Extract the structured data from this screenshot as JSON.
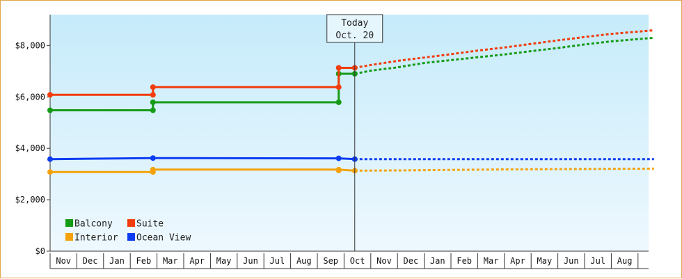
{
  "chart_data": {
    "type": "line",
    "x_categories": [
      "Nov",
      "Dec",
      "Jan",
      "Feb",
      "Mar",
      "Apr",
      "May",
      "Jun",
      "Jul",
      "Aug",
      "Sep",
      "Oct",
      "Nov",
      "Dec",
      "Jan",
      "Feb",
      "Mar",
      "Apr",
      "May",
      "Jun",
      "Jul",
      "Aug"
    ],
    "y_ticks": [
      "$0",
      "$2,000",
      "$4,000",
      "$6,000",
      "$8,000"
    ],
    "ylim": [
      0,
      9200
    ],
    "grid": false,
    "legend_position": "bottom-left",
    "today_marker": {
      "line1": "Today",
      "line2": "Oct. 20",
      "x": 11.4
    },
    "series": [
      {
        "name": "Balcony",
        "color": "#169b16",
        "history": [
          [
            0,
            5480
          ],
          [
            3.85,
            5480
          ],
          [
            3.85,
            5790
          ],
          [
            10.8,
            5790
          ],
          [
            10.8,
            6900
          ],
          [
            11.4,
            6900
          ]
        ],
        "points": [
          [
            0,
            5480
          ],
          [
            3.85,
            5480
          ],
          [
            3.85,
            5790
          ],
          [
            10.8,
            5790
          ],
          [
            10.8,
            6900
          ],
          [
            11.4,
            6900
          ]
        ],
        "forecast": [
          [
            11.4,
            6900
          ],
          [
            12,
            7020
          ],
          [
            13,
            7150
          ],
          [
            14,
            7320
          ],
          [
            15,
            7430
          ],
          [
            16,
            7540
          ],
          [
            17,
            7650
          ],
          [
            18,
            7780
          ],
          [
            19,
            7900
          ],
          [
            20,
            8040
          ],
          [
            21,
            8160
          ],
          [
            22.6,
            8300
          ]
        ]
      },
      {
        "name": "Suite",
        "color": "#f23c0c",
        "history": [
          [
            0,
            6080
          ],
          [
            3.85,
            6080
          ],
          [
            3.85,
            6380
          ],
          [
            10.8,
            6380
          ],
          [
            10.8,
            7130
          ],
          [
            11.4,
            7130
          ]
        ],
        "points": [
          [
            0,
            6080
          ],
          [
            3.85,
            6080
          ],
          [
            3.85,
            6380
          ],
          [
            10.8,
            6380
          ],
          [
            10.8,
            7130
          ],
          [
            11.4,
            7130
          ]
        ],
        "forecast": [
          [
            11.4,
            7130
          ],
          [
            12,
            7240
          ],
          [
            13,
            7400
          ],
          [
            14,
            7530
          ],
          [
            15,
            7660
          ],
          [
            16,
            7800
          ],
          [
            17,
            7920
          ],
          [
            18,
            8060
          ],
          [
            19,
            8200
          ],
          [
            20,
            8330
          ],
          [
            21,
            8450
          ],
          [
            22.6,
            8590
          ]
        ]
      },
      {
        "name": "Interior",
        "color": "#f4a20c",
        "history": [
          [
            0,
            3080
          ],
          [
            3.85,
            3080
          ],
          [
            3.85,
            3170
          ],
          [
            10.8,
            3170
          ],
          [
            11.4,
            3130
          ]
        ],
        "points": [
          [
            0,
            3080
          ],
          [
            3.85,
            3080
          ],
          [
            3.85,
            3170
          ],
          [
            10.8,
            3170
          ],
          [
            10.8,
            3140
          ],
          [
            11.4,
            3130
          ]
        ],
        "forecast": [
          [
            11.4,
            3130
          ],
          [
            13,
            3140
          ],
          [
            15,
            3160
          ],
          [
            17,
            3180
          ],
          [
            19,
            3190
          ],
          [
            21,
            3200
          ],
          [
            22.6,
            3210
          ]
        ]
      },
      {
        "name": "Ocean View",
        "color": "#0c3cf2",
        "history": [
          [
            0,
            3580
          ],
          [
            3.85,
            3620
          ],
          [
            10.8,
            3610
          ],
          [
            11.4,
            3580
          ]
        ],
        "points": [
          [
            0,
            3580
          ],
          [
            3.85,
            3620
          ],
          [
            10.8,
            3610
          ],
          [
            11.4,
            3580
          ]
        ],
        "forecast": [
          [
            11.4,
            3580
          ],
          [
            22.6,
            3580
          ]
        ]
      }
    ]
  }
}
